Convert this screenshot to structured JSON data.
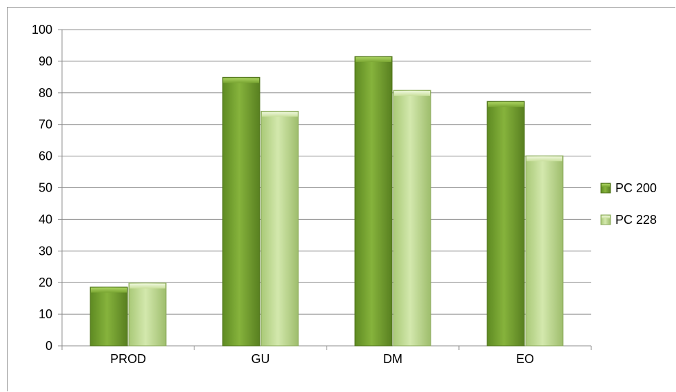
{
  "chart_data": {
    "type": "bar",
    "title": "",
    "xlabel": "",
    "ylabel": "",
    "categories": [
      "PROD",
      "GU",
      "DM",
      "EO"
    ],
    "series": [
      {
        "name": "PC 200",
        "values": [
          18.6,
          84.9,
          91.5,
          77.3
        ],
        "color": "#6f9a2b"
      },
      {
        "name": "PC 228",
        "values": [
          19.9,
          74.2,
          80.8,
          60.1
        ],
        "color": "#bcd88a"
      }
    ],
    "ylim": [
      0,
      100
    ],
    "yticks": [
      "0",
      "10",
      "20",
      "30",
      "40",
      "50",
      "60",
      "70",
      "80",
      "90",
      "100"
    ],
    "grid": true,
    "legend_position": "right"
  }
}
